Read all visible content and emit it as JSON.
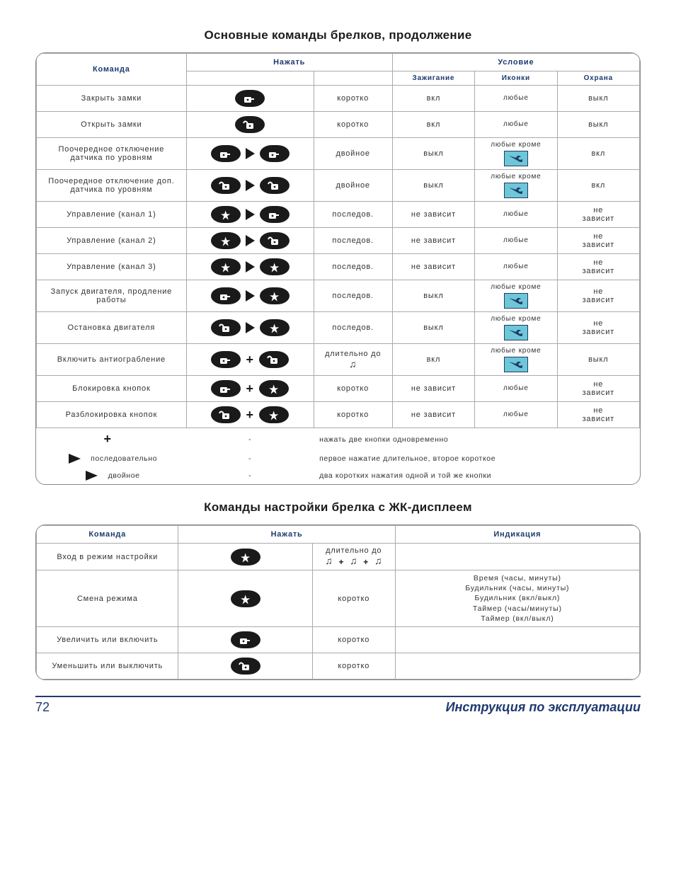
{
  "colors": {
    "heading": "#1f3a6e",
    "rule": "#1f3a6e",
    "border": "#aaaaaa",
    "wrench_bg": "#6ec7d6",
    "wrench_border": "#1f3a6e",
    "eye_fill": "#1a1a1a"
  },
  "title1": "Основные команды брелков, продолжение",
  "title2": "Команды настройки брелка с ЖК-дисплеем",
  "table1": {
    "headers": {
      "command": "Команда",
      "press": "Нажать",
      "condition": "Условие",
      "ignition": "Зажигание",
      "icons": "Иконки",
      "guard": "Охрана"
    },
    "rows": [
      {
        "cmd": "Закрыть замки",
        "icons": [
          "lock"
        ],
        "sep": "",
        "dur": "коротко",
        "ign": "вкл",
        "ik": "любые",
        "ik_wrench": false,
        "guard": "выкл"
      },
      {
        "cmd": "Открыть замки",
        "icons": [
          "unlock"
        ],
        "sep": "",
        "dur": "коротко",
        "ign": "вкл",
        "ik": "любые",
        "ik_wrench": false,
        "guard": "выкл"
      },
      {
        "cmd": "Поочередное отключение датчика по уровням",
        "icons": [
          "lock",
          "lock"
        ],
        "sep": "tri",
        "dur": "двойное",
        "ign": "выкл",
        "ik": "любые кроме",
        "ik_wrench": true,
        "guard": "вкл"
      },
      {
        "cmd": "Поочередное отключение доп. датчика по уровням",
        "icons": [
          "unlock",
          "unlock"
        ],
        "sep": "tri",
        "dur": "двойное",
        "ign": "выкл",
        "ik": "любые кроме",
        "ik_wrench": true,
        "guard": "вкл"
      },
      {
        "cmd": "Управление (канал 1)",
        "icons": [
          "star",
          "lock"
        ],
        "sep": "tri",
        "dur": "последов.",
        "ign": "не зависит",
        "ik": "любые",
        "ik_wrench": false,
        "guard": "не зависит"
      },
      {
        "cmd": "Управление (канал 2)",
        "icons": [
          "star",
          "unlock"
        ],
        "sep": "tri",
        "dur": "последов.",
        "ign": "не зависит",
        "ik": "любые",
        "ik_wrench": false,
        "guard": "не зависит"
      },
      {
        "cmd": "Управление (канал 3)",
        "icons": [
          "star",
          "star"
        ],
        "sep": "tri",
        "dur": "последов.",
        "ign": "не зависит",
        "ik": "любые",
        "ik_wrench": false,
        "guard": "не зависит"
      },
      {
        "cmd": "Запуск двигателя, продление работы",
        "icons": [
          "lock",
          "star"
        ],
        "sep": "tri",
        "dur": "последов.",
        "ign": "выкл",
        "ik": "любые кроме",
        "ik_wrench": true,
        "guard": "не зависит"
      },
      {
        "cmd": "Остановка двигателя",
        "icons": [
          "unlock",
          "star"
        ],
        "sep": "tri",
        "dur": "последов.",
        "ign": "выкл",
        "ik": "любые кроме",
        "ik_wrench": true,
        "guard": "не зависит"
      },
      {
        "cmd": "Включить антиограбление",
        "icons": [
          "lock",
          "unlock"
        ],
        "sep": "plus",
        "dur": "длительно до",
        "dur_note": true,
        "ign": "вкл",
        "ik": "любые кроме",
        "ik_wrench": true,
        "guard": "выкл"
      },
      {
        "cmd": "Блокировка кнопок",
        "icons": [
          "lock",
          "star"
        ],
        "sep": "plus",
        "dur": "коротко",
        "ign": "не зависит",
        "ik": "любые",
        "ik_wrench": false,
        "guard": "не зависит"
      },
      {
        "cmd": "Разблокировка кнопок",
        "icons": [
          "unlock",
          "star"
        ],
        "sep": "plus",
        "dur": "коротко",
        "ign": "не зависит",
        "ik": "любые",
        "ik_wrench": false,
        "guard": "не зависит"
      }
    ],
    "legend": [
      {
        "sym": "plus",
        "label": "",
        "dash": "-",
        "desc": "нажать две кнопки одновременно"
      },
      {
        "sym": "arrow",
        "label": "последовательно",
        "dash": "-",
        "desc": "первое нажатие длительное, второе короткое"
      },
      {
        "sym": "arrow",
        "label": "двойное",
        "dash": "-",
        "desc": "два коротких нажатия одной и той же кнопки"
      }
    ]
  },
  "table2": {
    "headers": {
      "command": "Команда",
      "press": "Нажать",
      "indication": "Индикация"
    },
    "rows": [
      {
        "cmd": "Вход в режим настройки",
        "icon": "star",
        "dur": "длительно до",
        "dur_notes": true,
        "ind": ""
      },
      {
        "cmd": "Смена режима",
        "icon": "star",
        "dur": "коротко",
        "ind": "Время  (часы, минуты)\nБудильник (часы, минуты)\nБудильник (вкл/выкл)\nТаймер (часы/минуты)\nТаймер (вкл/выкл)"
      },
      {
        "cmd": "Увеличить или включить",
        "icon": "lock",
        "dur": "коротко",
        "ind": ""
      },
      {
        "cmd": "Уменьшить или выключить",
        "icon": "unlock",
        "dur": "коротко",
        "ind": ""
      }
    ]
  },
  "footer": {
    "page": "72",
    "title": "Инструкция по эксплуатации"
  }
}
